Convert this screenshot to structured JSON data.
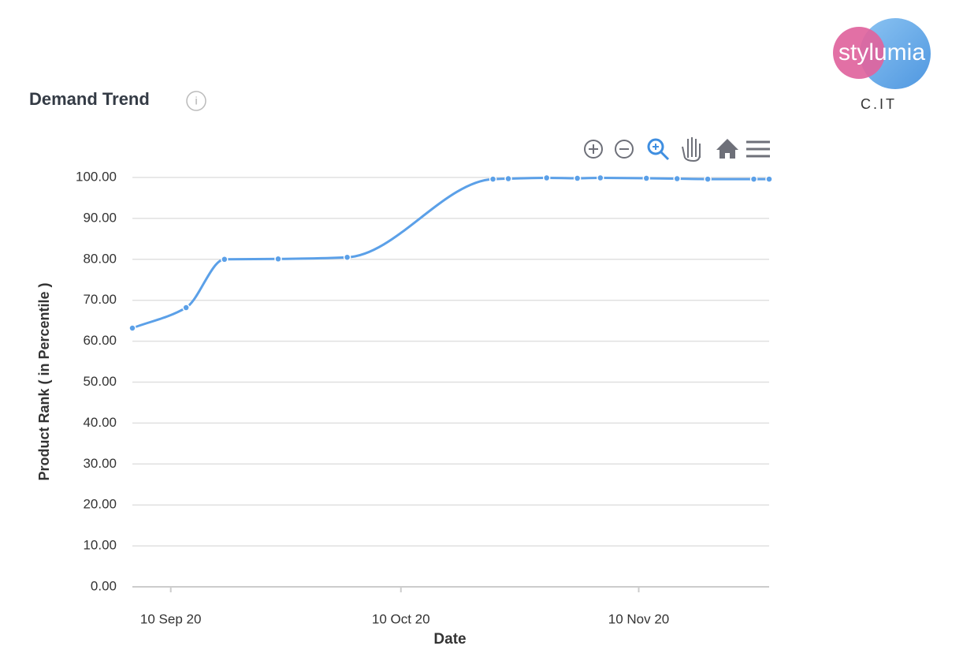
{
  "chart_data": {
    "type": "line",
    "title": "Demand Trend",
    "x_label": "Date",
    "y_label": "Product Rank ( in Percentile )",
    "x": [
      "2020-09-05",
      "2020-09-12",
      "2020-09-17",
      "2020-09-24",
      "2020-10-03",
      "2020-10-22",
      "2020-10-24",
      "2020-10-29",
      "2020-11-02",
      "2020-11-05",
      "2020-11-11",
      "2020-11-15",
      "2020-11-19",
      "2020-11-25",
      "2020-11-27"
    ],
    "values": [
      63.2,
      68.2,
      80.0,
      80.1,
      80.5,
      99.6,
      99.7,
      99.9,
      99.8,
      99.9,
      99.8,
      99.7,
      99.6,
      99.6,
      99.6
    ],
    "color": "#5ba0e8",
    "xlim": [
      "2020-09-05",
      "2020-11-27"
    ],
    "xticks": [
      {
        "value": "2020-09-10",
        "label": "10 Sep 20"
      },
      {
        "value": "2020-10-10",
        "label": "10 Oct 20"
      },
      {
        "value": "2020-11-10",
        "label": "10 Nov 20"
      }
    ],
    "ylim": [
      0,
      100
    ],
    "yticks": [
      {
        "value": 0,
        "label": "0.00"
      },
      {
        "value": 10,
        "label": "10.00"
      },
      {
        "value": 20,
        "label": "20.00"
      },
      {
        "value": 30,
        "label": "30.00"
      },
      {
        "value": 40,
        "label": "40.00"
      },
      {
        "value": 50,
        "label": "50.00"
      },
      {
        "value": 60,
        "label": "60.00"
      },
      {
        "value": 70,
        "label": "70.00"
      },
      {
        "value": 80,
        "label": "80.00"
      },
      {
        "value": 90,
        "label": "90.00"
      },
      {
        "value": 100,
        "label": "100.00"
      }
    ],
    "grid": true
  },
  "logo": {
    "text": "stylumia",
    "subtext": "C.IT"
  }
}
